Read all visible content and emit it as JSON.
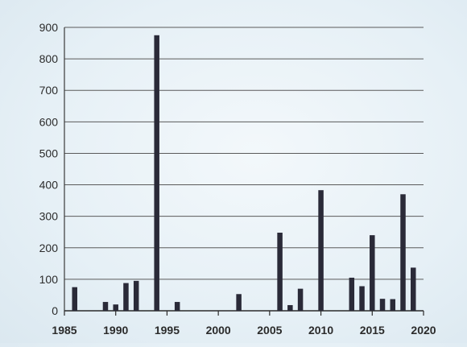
{
  "colors": {
    "bar": "#2a2a38",
    "grid": "#5a5a5a",
    "background": "#e6f0f6"
  },
  "chart_data": {
    "type": "bar",
    "title": "",
    "xlabel": "",
    "ylabel": "",
    "xlim": [
      1985,
      2020
    ],
    "ylim": [
      0,
      900
    ],
    "grid": true,
    "legend": "none",
    "y_ticks": [
      0,
      100,
      200,
      300,
      400,
      500,
      600,
      700,
      800,
      900
    ],
    "x_ticks": [
      1985,
      1990,
      1995,
      2000,
      2005,
      2010,
      2015,
      2020
    ],
    "x": [
      1986,
      1989,
      1990,
      1991,
      1992,
      1994,
      1996,
      2002,
      2006,
      2007,
      2008,
      2010,
      2013,
      2014,
      2015,
      2016,
      2017,
      2018,
      2019
    ],
    "values": [
      75,
      28,
      20,
      88,
      95,
      875,
      28,
      53,
      248,
      18,
      70,
      383,
      105,
      78,
      240,
      38,
      37,
      370,
      137
    ]
  }
}
